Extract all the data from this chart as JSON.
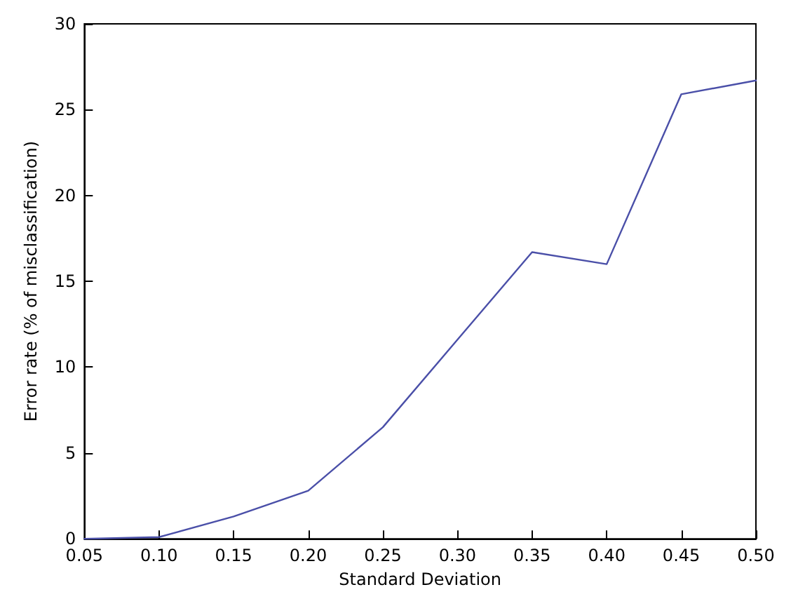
{
  "chart_data": {
    "type": "line",
    "xlabel": "Standard Deviation",
    "ylabel": "Error rate (% of misclassification)",
    "x": [
      0.05,
      0.1,
      0.15,
      0.2,
      0.25,
      0.3,
      0.35,
      0.4,
      0.45,
      0.5
    ],
    "series": [
      {
        "color": "#4a4fa8",
        "values": [
          0,
          0.1,
          1.3,
          2.8,
          6.5,
          11.6,
          16.7,
          16.0,
          25.9,
          26.7
        ]
      }
    ],
    "xlim": [
      0.05,
      0.5
    ],
    "xticks": [
      0.05,
      {
        "value": 0.1,
        "label": "0.10"
      },
      0.15,
      {
        "value": 0.2,
        "label": "0.20"
      },
      0.25,
      {
        "value": 0.3,
        "label": "0.30"
      },
      0.35,
      {
        "value": 0.4,
        "label": "0.40"
      },
      0.45,
      {
        "value": 0.5,
        "label": "0.50"
      }
    ],
    "ylim": [
      0,
      30
    ],
    "yticks": [
      0,
      5,
      10,
      15,
      20,
      25,
      30
    ],
    "grid": false,
    "marker": "none",
    "line_style": "solid"
  }
}
